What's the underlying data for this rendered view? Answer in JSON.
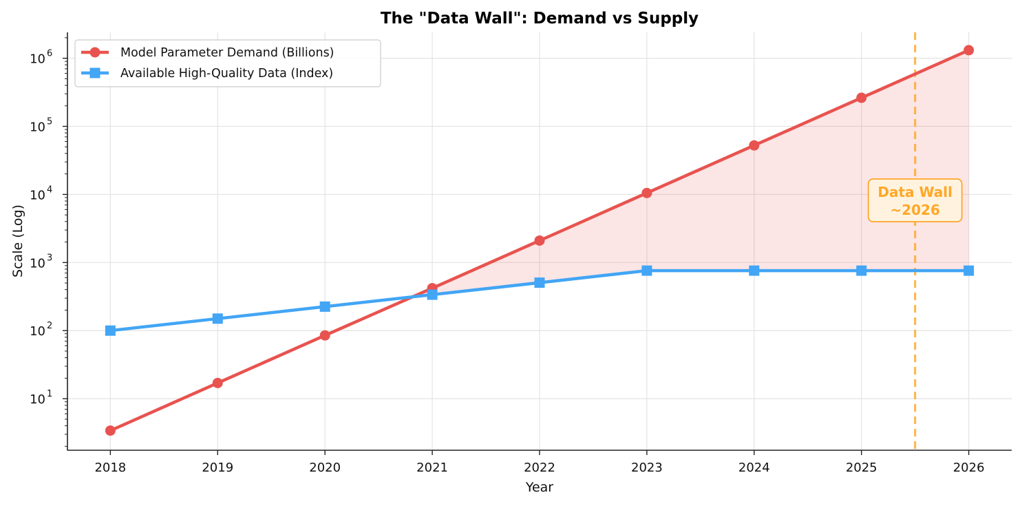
{
  "chart_data": {
    "type": "line",
    "title": "The \"Data Wall\": Demand vs Supply",
    "xlabel": "Year",
    "ylabel": "Scale (Log)",
    "y_scale": "log",
    "ylim": [
      1.75,
      2400000
    ],
    "xlim": [
      2017.6,
      2026.4
    ],
    "grid": true,
    "legend_position": "top-left",
    "categories": [
      "2018",
      "2019",
      "2020",
      "2021",
      "2022",
      "2023",
      "2024",
      "2025",
      "2026"
    ],
    "x": [
      2018,
      2019,
      2020,
      2021,
      2022,
      2023,
      2024,
      2025,
      2026
    ],
    "y_ticks": [
      {
        "value": 10,
        "base": "10",
        "exp": "1"
      },
      {
        "value": 100,
        "base": "10",
        "exp": "2"
      },
      {
        "value": 1000,
        "base": "10",
        "exp": "3"
      },
      {
        "value": 10000,
        "base": "10",
        "exp": "4"
      },
      {
        "value": 100000,
        "base": "10",
        "exp": "5"
      },
      {
        "value": 1000000,
        "base": "10",
        "exp": "6"
      }
    ],
    "series": [
      {
        "name": "Model Parameter Demand (Billions)",
        "color": "#e8534f",
        "marker": "circle",
        "values": [
          3.4,
          17,
          85,
          420,
          2100,
          10500,
          52500,
          262500,
          1312500
        ]
      },
      {
        "name": "Available High-Quality Data (Index)",
        "color": "#42a5f5",
        "marker": "square",
        "values": [
          100,
          150,
          225,
          337,
          506,
          760,
          760,
          760,
          760
        ]
      }
    ],
    "fill_between": {
      "color": "#e8534f",
      "opacity": 0.15
    },
    "annotations": [
      {
        "type": "vline",
        "x": 2025.5,
        "color": "#ffa726",
        "style": "dashed",
        "label_lines": [
          "Data Wall",
          "~2026"
        ],
        "label_x": 2025.5,
        "label_y": 8000
      }
    ]
  }
}
